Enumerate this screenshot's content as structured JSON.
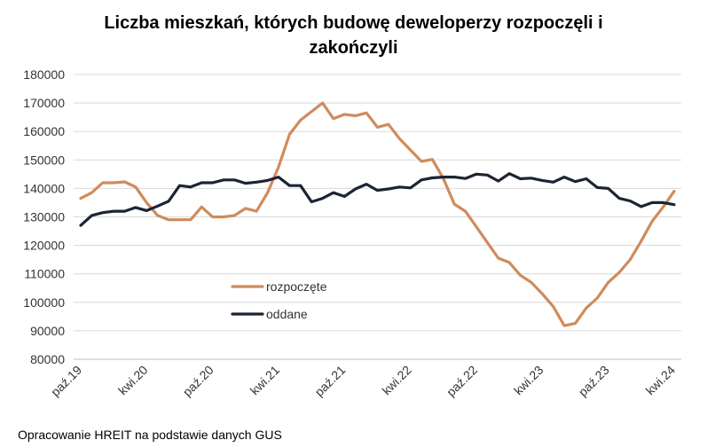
{
  "chart_data": {
    "type": "line",
    "title_lines": [
      "Liczba mieszkań, których budowę deweloperzy rozpoczęli i",
      "zakończyli"
    ],
    "source": "Opracowanie HREIT na podstawie danych GUS",
    "ylim": [
      80000,
      180000
    ],
    "yticks": [
      80000,
      90000,
      100000,
      110000,
      120000,
      130000,
      140000,
      150000,
      160000,
      170000,
      180000
    ],
    "grid": true,
    "legend_position": "center-left inside plot",
    "x_tick_labels": [
      {
        "index": 0,
        "label": "paź.19"
      },
      {
        "index": 6,
        "label": "kwi.20"
      },
      {
        "index": 12,
        "label": "paź.20"
      },
      {
        "index": 18,
        "label": "kwi.21"
      },
      {
        "index": 24,
        "label": "paź.21"
      },
      {
        "index": 30,
        "label": "kwi.22"
      },
      {
        "index": 36,
        "label": "paź.22"
      },
      {
        "index": 42,
        "label": "kwi.23"
      },
      {
        "index": 48,
        "label": "paź.23"
      },
      {
        "index": 54,
        "label": "kwi.24"
      }
    ],
    "series": [
      {
        "name": "rozpoczęte",
        "color": "#d08b5b",
        "values": [
          136500,
          138500,
          142000,
          142000,
          142300,
          140500,
          135000,
          130500,
          129000,
          129000,
          129000,
          133500,
          130000,
          130000,
          130500,
          133000,
          132000,
          138500,
          147500,
          159000,
          164000,
          167000,
          170000,
          164500,
          166000,
          165500,
          166500,
          161500,
          162500,
          157500,
          153500,
          149500,
          150200,
          143500,
          134500,
          132000,
          126500,
          121000,
          115500,
          114000,
          109500,
          107000,
          103000,
          98500,
          91800,
          92600,
          98000,
          101500,
          107000,
          110500,
          115000,
          121500,
          128500,
          133500,
          139000
        ]
      },
      {
        "name": "oddane",
        "color": "#1c2434",
        "values": [
          127000,
          130500,
          131500,
          132000,
          132000,
          133300,
          132200,
          133800,
          135500,
          141000,
          140500,
          142000,
          142000,
          143000,
          143000,
          141800,
          142200,
          142800,
          144000,
          141000,
          141000,
          135300,
          136500,
          138500,
          137200,
          139800,
          141500,
          139300,
          139800,
          140500,
          140200,
          143000,
          143700,
          144000,
          144000,
          143500,
          145000,
          144700,
          142600,
          145200,
          143400,
          143600,
          142800,
          142200,
          144000,
          142400,
          143400,
          140300,
          140000,
          136500,
          135600,
          133600,
          135000,
          135000,
          134300
        ]
      }
    ]
  }
}
